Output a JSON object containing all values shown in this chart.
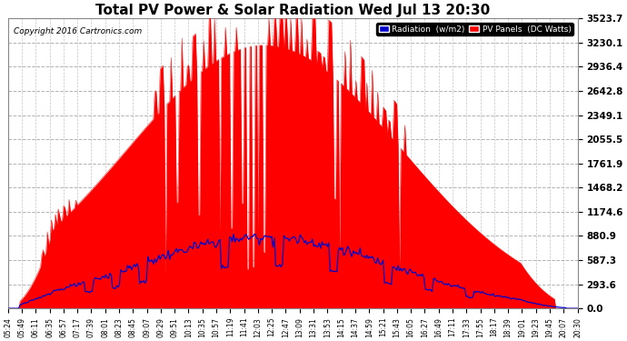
{
  "title": "Total PV Power & Solar Radiation Wed Jul 13 20:30",
  "copyright": "Copyright 2016 Cartronics.com",
  "legend_radiation": "Radiation  (w/m2)",
  "legend_pv": "PV Panels  (DC Watts)",
  "yticks": [
    0.0,
    293.6,
    587.3,
    880.9,
    1174.6,
    1468.2,
    1761.9,
    2055.5,
    2349.1,
    2642.8,
    2936.4,
    3230.1,
    3523.7
  ],
  "ytick_labels": [
    "0.0",
    "293.6",
    "587.3",
    "880.9",
    "1174.6",
    "1468.2",
    "1761.9",
    "2055.5",
    "2349.1",
    "2642.8",
    "2936.4",
    "3230.1",
    "3523.7"
  ],
  "ylim": [
    0,
    3523.7
  ],
  "bg_color": "#ffffff",
  "plot_bg_color": "#ffffff",
  "grid_color": "#aaaaaa",
  "radiation_color": "#0000cc",
  "pv_color": "#ff0000",
  "pv_fill_color": "#ff0000",
  "time_labels": [
    "05:24",
    "05:49",
    "06:11",
    "06:35",
    "06:57",
    "07:17",
    "07:39",
    "08:01",
    "08:23",
    "08:45",
    "09:07",
    "09:29",
    "09:51",
    "10:13",
    "10:35",
    "10:57",
    "11:19",
    "11:41",
    "12:03",
    "12:25",
    "12:47",
    "13:09",
    "13:31",
    "13:53",
    "14:15",
    "14:37",
    "14:59",
    "15:21",
    "15:43",
    "16:05",
    "16:27",
    "16:49",
    "17:11",
    "17:33",
    "17:55",
    "18:17",
    "18:39",
    "19:01",
    "19:23",
    "19:45",
    "20:07",
    "20:30"
  ],
  "figsize": [
    6.9,
    3.75
  ],
  "dpi": 100
}
